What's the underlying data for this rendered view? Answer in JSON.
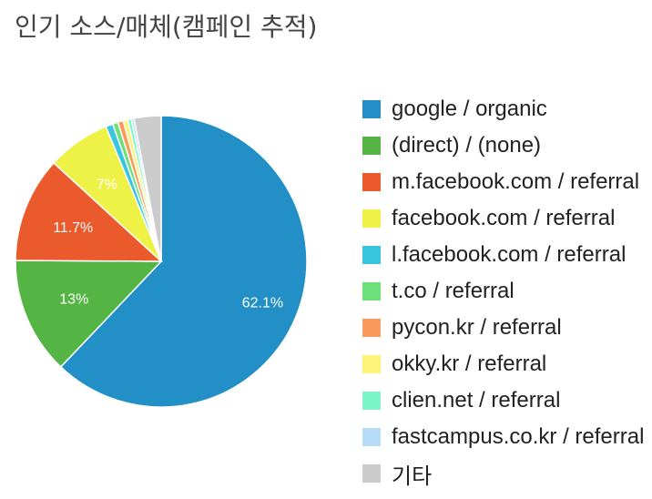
{
  "title": "인기 소스/매체(캠페인 추적)",
  "chart_data": {
    "type": "pie",
    "title": "인기 소스/매체(캠페인 추적)",
    "slices": [
      {
        "label": "google / organic",
        "value": 62.1,
        "display": "62.1%",
        "color": "#2290c6"
      },
      {
        "label": "(direct) / (none)",
        "value": 13.0,
        "display": "13%",
        "color": "#55b544"
      },
      {
        "label": "m.facebook.com / referral",
        "value": 11.7,
        "display": "11.7%",
        "color": "#eb5a2d"
      },
      {
        "label": "facebook.com / referral",
        "value": 7.0,
        "display": "7%",
        "color": "#eef246"
      },
      {
        "label": "l.facebook.com / referral",
        "value": 0.8,
        "display": "",
        "color": "#38c6df"
      },
      {
        "label": "t.co / referral",
        "value": 0.6,
        "display": "",
        "color": "#6ee07a"
      },
      {
        "label": "pycon.kr / referral",
        "value": 0.6,
        "display": "",
        "color": "#f99b5e"
      },
      {
        "label": "okky.kr / referral",
        "value": 0.5,
        "display": "",
        "color": "#fbf37a"
      },
      {
        "label": "clien.net / referral",
        "value": 0.4,
        "display": "",
        "color": "#7af7c8"
      },
      {
        "label": "fastcampus.co.kr / referral",
        "value": 0.3,
        "display": "",
        "color": "#b7dcf7"
      },
      {
        "label": "기타",
        "value": 3.0,
        "display": "",
        "color": "#cccccc"
      }
    ],
    "legend_position": "right"
  }
}
